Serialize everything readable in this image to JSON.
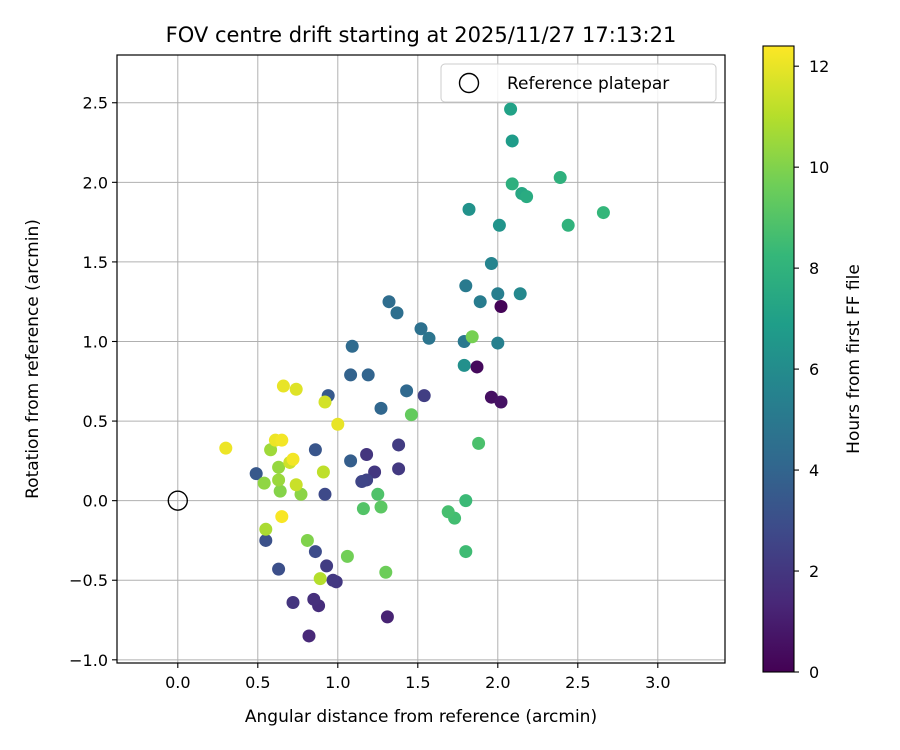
{
  "chart_data": {
    "type": "scatter",
    "title": "FOV centre drift starting at 2025/11/27 17:13:21",
    "xlabel": "Angular distance from reference (arcmin)",
    "ylabel": "Rotation from reference (arcmin)",
    "xlim": [
      -0.38,
      3.42
    ],
    "ylim": [
      -1.02,
      2.8
    ],
    "xticks": [
      0.0,
      0.5,
      1.0,
      1.5,
      2.0,
      2.5,
      3.0
    ],
    "xtick_labels": [
      "0.0",
      "0.5",
      "1.0",
      "1.5",
      "2.0",
      "2.5",
      "3.0"
    ],
    "yticks": [
      -1.0,
      -0.5,
      0.0,
      0.5,
      1.0,
      1.5,
      2.0,
      2.5
    ],
    "ytick_labels": [
      "−1.0",
      "−0.5",
      "0.0",
      "0.5",
      "1.0",
      "1.5",
      "2.0",
      "2.5"
    ],
    "grid": true,
    "legend": {
      "position": "top-right",
      "label": "Reference platepar"
    },
    "reference": {
      "x": 0.0,
      "y": 0.0
    },
    "colorbar": {
      "label": "Hours from first FF file",
      "range": [
        0,
        12.4
      ],
      "ticks": [
        0,
        2,
        4,
        6,
        8,
        10,
        12
      ],
      "tick_labels": [
        "0",
        "2",
        "4",
        "6",
        "8",
        "10",
        "12"
      ],
      "colormap": [
        "#440154",
        "#482878",
        "#3e4989",
        "#31688e",
        "#26828e",
        "#1f9e89",
        "#35b779",
        "#6ece58",
        "#b5de2b",
        "#fde725"
      ]
    },
    "points": [
      {
        "x": 2.02,
        "y": 1.22,
        "t": 0.1
      },
      {
        "x": 1.87,
        "y": 0.84,
        "t": 0.3
      },
      {
        "x": 1.96,
        "y": 0.65,
        "t": 0.5
      },
      {
        "x": 2.02,
        "y": 0.62,
        "t": 0.6
      },
      {
        "x": 1.31,
        "y": -0.73,
        "t": 1.2
      },
      {
        "x": 0.82,
        "y": -0.85,
        "t": 1.4
      },
      {
        "x": 0.88,
        "y": -0.66,
        "t": 1.6
      },
      {
        "x": 0.85,
        "y": -0.62,
        "t": 1.7
      },
      {
        "x": 0.72,
        "y": -0.64,
        "t": 1.9
      },
      {
        "x": 0.99,
        "y": -0.51,
        "t": 2.0
      },
      {
        "x": 0.97,
        "y": -0.5,
        "t": 2.1
      },
      {
        "x": 0.93,
        "y": -0.41,
        "t": 2.2
      },
      {
        "x": 1.18,
        "y": 0.29,
        "t": 1.9
      },
      {
        "x": 1.23,
        "y": 0.18,
        "t": 2.0
      },
      {
        "x": 1.38,
        "y": 0.2,
        "t": 2.1
      },
      {
        "x": 1.38,
        "y": 0.35,
        "t": 2.2
      },
      {
        "x": 1.54,
        "y": 0.66,
        "t": 2.3
      },
      {
        "x": 1.18,
        "y": 0.13,
        "t": 2.5
      },
      {
        "x": 1.15,
        "y": 0.12,
        "t": 2.6
      },
      {
        "x": 0.92,
        "y": 0.04,
        "t": 2.8
      },
      {
        "x": 0.86,
        "y": -0.32,
        "t": 2.9
      },
      {
        "x": 0.63,
        "y": -0.43,
        "t": 3.0
      },
      {
        "x": 0.55,
        "y": -0.25,
        "t": 3.1
      },
      {
        "x": 0.86,
        "y": 0.32,
        "t": 3.3
      },
      {
        "x": 0.49,
        "y": 0.17,
        "t": 3.4
      },
      {
        "x": 0.94,
        "y": 0.66,
        "t": 3.5
      },
      {
        "x": 1.08,
        "y": 0.25,
        "t": 3.7
      },
      {
        "x": 1.08,
        "y": 0.79,
        "t": 3.9
      },
      {
        "x": 1.19,
        "y": 0.79,
        "t": 4.0
      },
      {
        "x": 1.27,
        "y": 0.58,
        "t": 4.1
      },
      {
        "x": 1.43,
        "y": 0.69,
        "t": 4.2
      },
      {
        "x": 1.09,
        "y": 0.97,
        "t": 4.3
      },
      {
        "x": 1.32,
        "y": 1.25,
        "t": 4.4
      },
      {
        "x": 1.37,
        "y": 1.18,
        "t": 4.5
      },
      {
        "x": 1.52,
        "y": 1.08,
        "t": 4.6
      },
      {
        "x": 1.57,
        "y": 1.02,
        "t": 4.8
      },
      {
        "x": 1.79,
        "y": 1.0,
        "t": 5.0
      },
      {
        "x": 1.8,
        "y": 1.35,
        "t": 5.1
      },
      {
        "x": 1.89,
        "y": 1.25,
        "t": 5.2
      },
      {
        "x": 2.0,
        "y": 1.3,
        "t": 5.3
      },
      {
        "x": 2.0,
        "y": 0.99,
        "t": 5.4
      },
      {
        "x": 1.96,
        "y": 1.49,
        "t": 5.6
      },
      {
        "x": 2.14,
        "y": 1.3,
        "t": 5.8
      },
      {
        "x": 1.79,
        "y": 0.85,
        "t": 6.2
      },
      {
        "x": 1.82,
        "y": 1.83,
        "t": 6.3
      },
      {
        "x": 2.01,
        "y": 1.73,
        "t": 6.4
      },
      {
        "x": 2.09,
        "y": 2.26,
        "t": 6.8
      },
      {
        "x": 2.08,
        "y": 2.46,
        "t": 7.1
      },
      {
        "x": 2.15,
        "y": 1.93,
        "t": 7.4
      },
      {
        "x": 2.18,
        "y": 1.91,
        "t": 7.6
      },
      {
        "x": 2.09,
        "y": 1.99,
        "t": 7.8
      },
      {
        "x": 2.39,
        "y": 2.03,
        "t": 7.9
      },
      {
        "x": 2.44,
        "y": 1.73,
        "t": 8.0
      },
      {
        "x": 2.66,
        "y": 1.81,
        "t": 8.2
      },
      {
        "x": 1.8,
        "y": 0.0,
        "t": 8.4
      },
      {
        "x": 1.8,
        "y": -0.32,
        "t": 8.5
      },
      {
        "x": 1.73,
        "y": -0.11,
        "t": 8.6
      },
      {
        "x": 1.69,
        "y": -0.07,
        "t": 8.7
      },
      {
        "x": 1.88,
        "y": 0.36,
        "t": 8.8
      },
      {
        "x": 1.25,
        "y": 0.04,
        "t": 8.9
      },
      {
        "x": 1.16,
        "y": -0.05,
        "t": 9.0
      },
      {
        "x": 1.27,
        "y": -0.04,
        "t": 9.2
      },
      {
        "x": 1.46,
        "y": 0.54,
        "t": 9.4
      },
      {
        "x": 1.3,
        "y": -0.45,
        "t": 9.6
      },
      {
        "x": 1.06,
        "y": -0.35,
        "t": 9.7
      },
      {
        "x": 1.84,
        "y": 1.03,
        "t": 9.8
      },
      {
        "x": 0.81,
        "y": -0.25,
        "t": 10.0
      },
      {
        "x": 0.64,
        "y": 0.06,
        "t": 10.1
      },
      {
        "x": 0.77,
        "y": 0.04,
        "t": 10.2
      },
      {
        "x": 0.54,
        "y": 0.11,
        "t": 10.3
      },
      {
        "x": 0.63,
        "y": 0.21,
        "t": 10.4
      },
      {
        "x": 0.63,
        "y": 0.13,
        "t": 10.5
      },
      {
        "x": 0.58,
        "y": 0.32,
        "t": 10.6
      },
      {
        "x": 0.55,
        "y": -0.18,
        "t": 10.8
      },
      {
        "x": 0.89,
        "y": -0.49,
        "t": 11.0
      },
      {
        "x": 0.91,
        "y": 0.18,
        "t": 11.2
      },
      {
        "x": 0.74,
        "y": 0.1,
        "t": 11.4
      },
      {
        "x": 0.7,
        "y": 0.24,
        "t": 11.5
      },
      {
        "x": 0.92,
        "y": 0.62,
        "t": 11.6
      },
      {
        "x": 0.74,
        "y": 0.7,
        "t": 11.8
      },
      {
        "x": 0.66,
        "y": 0.72,
        "t": 12.0
      },
      {
        "x": 1.0,
        "y": 0.48,
        "t": 12.0
      },
      {
        "x": 0.61,
        "y": 0.38,
        "t": 12.1
      },
      {
        "x": 0.3,
        "y": 0.33,
        "t": 12.1
      },
      {
        "x": 0.65,
        "y": 0.38,
        "t": 12.2
      },
      {
        "x": 0.72,
        "y": 0.26,
        "t": 12.2
      },
      {
        "x": 0.65,
        "y": -0.1,
        "t": 12.3
      }
    ]
  }
}
